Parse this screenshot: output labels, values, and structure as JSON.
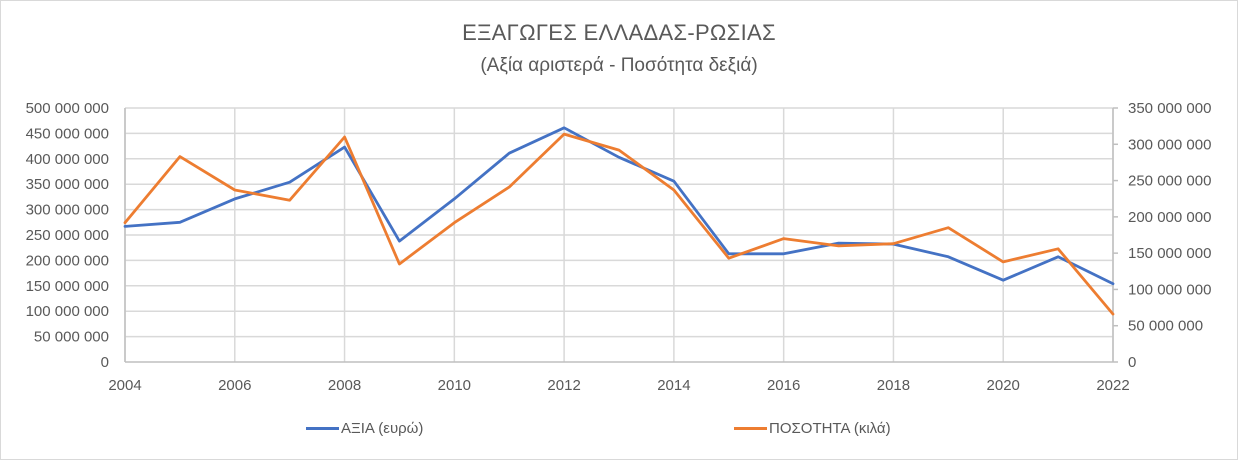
{
  "chart_data": {
    "type": "line",
    "title": "ΕΞΑΓΩΓΕΣ ΕΛΛΑΔΑΣ-ΡΩΣΙΑΣ",
    "subtitle": "(Αξία αριστερά - Ποσότητα δεξιά)",
    "xlabel": "",
    "ylabel": "",
    "x": [
      2004,
      2005,
      2006,
      2007,
      2008,
      2009,
      2010,
      2011,
      2012,
      2013,
      2014,
      2015,
      2016,
      2017,
      2018,
      2019,
      2020,
      2021,
      2022
    ],
    "x_tick_labels": [
      "2004",
      "2006",
      "2008",
      "2010",
      "2012",
      "2014",
      "2016",
      "2018",
      "2020",
      "2022"
    ],
    "left_axis": {
      "ylim": [
        0,
        500000000
      ],
      "tick_labels": [
        "0",
        "50 000 000",
        "100 000 000",
        "150 000 000",
        "200 000 000",
        "250 000 000",
        "300 000 000",
        "350 000 000",
        "400 000 000",
        "450 000 000",
        "500 000 000"
      ]
    },
    "right_axis": {
      "ylim": [
        0,
        350000000
      ],
      "tick_labels": [
        "0",
        "50 000 000",
        "100 000 000",
        "150 000 000",
        "200 000 000",
        "250 000 000",
        "300 000 000",
        "350 000 000"
      ]
    },
    "grid": true,
    "legend_position": "bottom",
    "series": [
      {
        "name": "ΑΞΙΑ (ευρώ)",
        "axis": "left",
        "color": "#4472c4",
        "values": [
          267000000,
          275000000,
          321000000,
          354000000,
          423000000,
          238000000,
          321000000,
          411000000,
          461000000,
          403000000,
          356000000,
          213000000,
          213000000,
          234000000,
          232000000,
          207000000,
          161000000,
          207000000,
          154000000
        ]
      },
      {
        "name": "ΠΟΣΟΤΗΤΑ (κιλά)",
        "axis": "right",
        "color": "#ed7d31",
        "values": [
          192000000,
          283000000,
          237000000,
          223000000,
          310000000,
          135000000,
          192000000,
          241000000,
          314000000,
          292000000,
          237000000,
          143000000,
          170000000,
          160000000,
          163000000,
          185000000,
          138000000,
          156000000,
          66000000
        ]
      }
    ]
  },
  "legend": {
    "items": [
      {
        "label": "ΑΞΙΑ (ευρώ)",
        "color": "#4472c4"
      },
      {
        "label": "ΠΟΣΟΤΗΤΑ (κιλά)",
        "color": "#ed7d31"
      }
    ]
  }
}
